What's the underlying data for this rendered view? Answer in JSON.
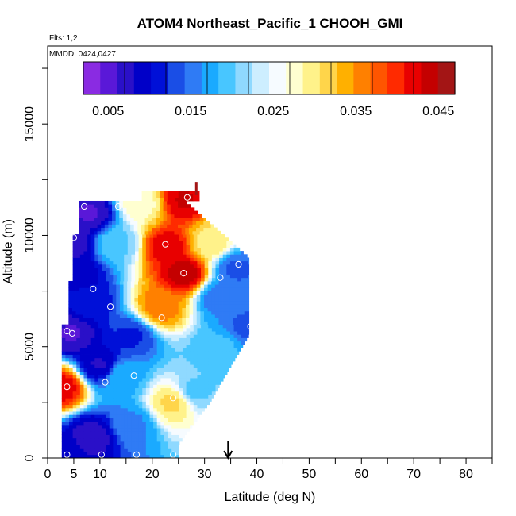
{
  "chart_data": {
    "type": "heatmap",
    "title": "ATOM4 Northeast_Pacific_1 CHOOH_GMI",
    "flights_note": "Flts: 1,2",
    "date_note": "MMDD: 0424,0427",
    "xlabel": "Latitude (deg N)",
    "ylabel": "Altitude (m)",
    "xlim": [
      0,
      85
    ],
    "ylim": [
      0,
      18500
    ],
    "x_ticks": [
      "0",
      "5",
      "10",
      "20",
      "30",
      "40",
      "50",
      "60",
      "70",
      "80"
    ],
    "y_ticks": [
      "0",
      "5000",
      "10000",
      "15000"
    ],
    "colorbar": {
      "range": [
        0.002,
        0.047
      ],
      "ticks": [
        "0.005",
        "0.015",
        "0.025",
        "0.035",
        "0.045"
      ],
      "colors": [
        "#8a2be2",
        "#5a18d8",
        "#2a10c8",
        "#0000c8",
        "#0010d8",
        "#1a4ee6",
        "#2f7bf5",
        "#1aaaff",
        "#48c6ff",
        "#8fd9ff",
        "#cdeeff",
        "#f6fbff",
        "#ffffd0",
        "#fff28a",
        "#ffd54a",
        "#ffb000",
        "#ff8000",
        "#ff5500",
        "#ff2a00",
        "#e80000",
        "#c40000",
        "#a31515"
      ]
    },
    "marker_latitude": 34.5,
    "profiles": [
      {
        "lat": 2.7,
        "alt": 200,
        "val": 0.01
      },
      {
        "lat": 8.5,
        "alt": 1000,
        "val": 0.007
      },
      {
        "lat": 16.0,
        "alt": 1500,
        "val": 0.016
      },
      {
        "lat": 24.0,
        "alt": 2500,
        "val": 0.031
      },
      {
        "lat": 2.7,
        "alt": 3200,
        "val": 0.042
      },
      {
        "lat": 14.0,
        "alt": 3700,
        "val": 0.018
      },
      {
        "lat": 28.0,
        "alt": 3000,
        "val": 0.02
      },
      {
        "lat": 10.0,
        "alt": 4200,
        "val": 0.008
      },
      {
        "lat": 33.0,
        "alt": 4900,
        "val": 0.019
      },
      {
        "lat": 4.5,
        "alt": 5600,
        "val": 0.006
      },
      {
        "lat": 16.0,
        "alt": 5500,
        "val": 0.012
      },
      {
        "lat": 38.0,
        "alt": 5900,
        "val": 0.014
      },
      {
        "lat": 8.0,
        "alt": 7000,
        "val": 0.011
      },
      {
        "lat": 21.5,
        "alt": 6800,
        "val": 0.036
      },
      {
        "lat": 33.0,
        "alt": 7200,
        "val": 0.015
      },
      {
        "lat": 6.0,
        "alt": 8300,
        "val": 0.009
      },
      {
        "lat": 26.0,
        "alt": 8300,
        "val": 0.044
      },
      {
        "lat": 36.0,
        "alt": 8500,
        "val": 0.014
      },
      {
        "lat": 5.0,
        "alt": 9700,
        "val": 0.007
      },
      {
        "lat": 13.0,
        "alt": 9600,
        "val": 0.02
      },
      {
        "lat": 23.0,
        "alt": 9500,
        "val": 0.042
      },
      {
        "lat": 31.0,
        "alt": 9700,
        "val": 0.03
      },
      {
        "lat": 8.0,
        "alt": 11000,
        "val": 0.006
      },
      {
        "lat": 18.0,
        "alt": 11500,
        "val": 0.028
      },
      {
        "lat": 26.0,
        "alt": 11600,
        "val": 0.043
      }
    ],
    "sample_points": [
      {
        "lat": 3.7,
        "alt": 150
      },
      {
        "lat": 10.3,
        "alt": 150
      },
      {
        "lat": 17.0,
        "alt": 150
      },
      {
        "lat": 24.0,
        "alt": 150
      },
      {
        "lat": 11.0,
        "alt": 3400
      },
      {
        "lat": 16.5,
        "alt": 3700
      },
      {
        "lat": 24.0,
        "alt": 2700
      },
      {
        "lat": 3.7,
        "alt": 3200
      },
      {
        "lat": 3.7,
        "alt": 5700
      },
      {
        "lat": 4.7,
        "alt": 5600
      },
      {
        "lat": 38.8,
        "alt": 5900
      },
      {
        "lat": 21.8,
        "alt": 6300
      },
      {
        "lat": 12.0,
        "alt": 6800
      },
      {
        "lat": 8.7,
        "alt": 7600
      },
      {
        "lat": 26.0,
        "alt": 8300
      },
      {
        "lat": 33.0,
        "alt": 8100
      },
      {
        "lat": 36.5,
        "alt": 8700
      },
      {
        "lat": 5.0,
        "alt": 9900
      },
      {
        "lat": 22.5,
        "alt": 9600
      },
      {
        "lat": 7.0,
        "alt": 11300
      },
      {
        "lat": 13.5,
        "alt": 11300
      },
      {
        "lat": 26.7,
        "alt": 11700
      }
    ]
  }
}
